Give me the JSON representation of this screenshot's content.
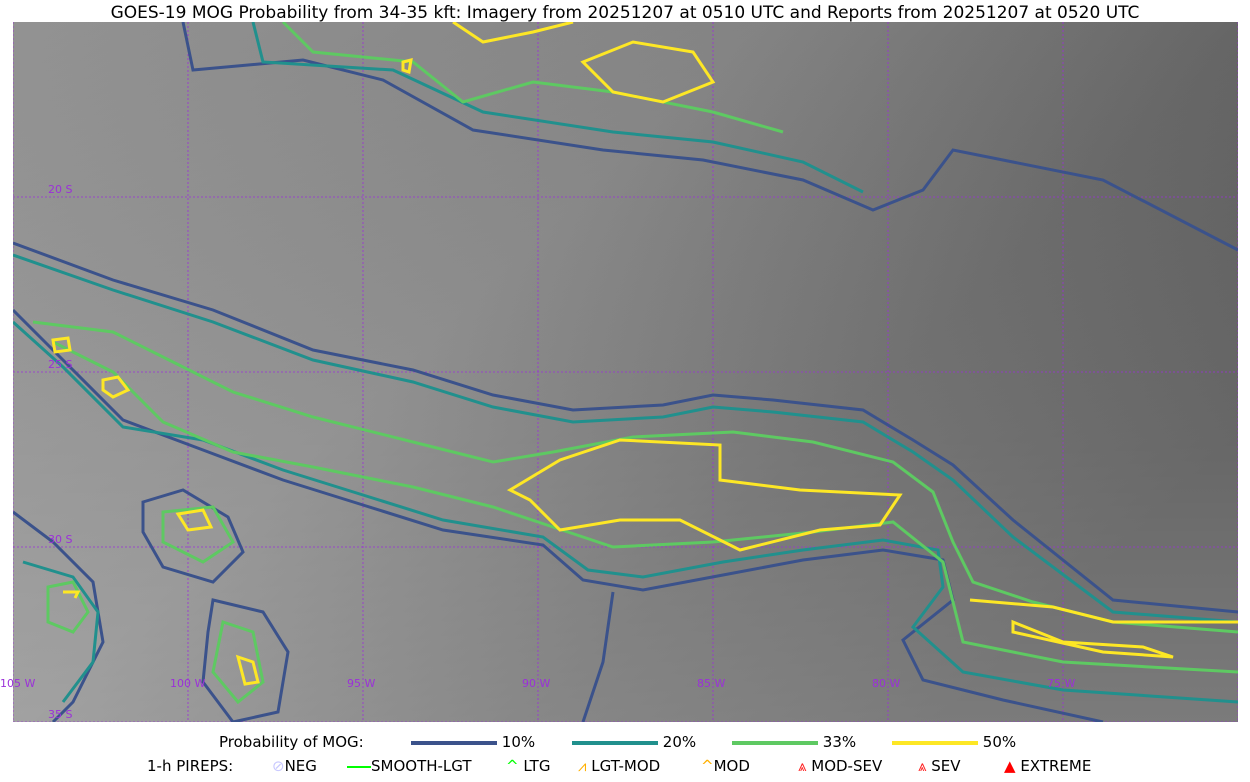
{
  "title": "GOES-19 MOG Probability from 34-35 kft: Imagery from 20251207 at 0510 UTC and Reports from 20251207 at 0520 UTC",
  "map": {
    "lon_labels": [
      "105 W",
      "100 W",
      "95 W",
      "90 W",
      "85 W",
      "80 W",
      "75 W"
    ],
    "lat_labels": [
      "20 S",
      "25 S",
      "30 S",
      "35 S"
    ],
    "gridline_color": "#9b30d9"
  },
  "legend": {
    "prob_label": "Probability of MOG:",
    "levels": [
      {
        "label": "10%",
        "color": "#3b528b"
      },
      {
        "label": "20%",
        "color": "#21908d"
      },
      {
        "label": "33%",
        "color": "#5ec962"
      },
      {
        "label": "50%",
        "color": "#fde725"
      }
    ],
    "pireps_label": "1-h PIREPS:",
    "pireps": [
      {
        "label": "NEG",
        "color": "#c8c8ff",
        "icon": "neg-icon"
      },
      {
        "label": "SMOOTH-LGT",
        "color": "#00ff00",
        "icon": "smooth-lgt-icon"
      },
      {
        "label": "LTG",
        "color": "#00ff00",
        "icon": "ltg-icon"
      },
      {
        "label": "LGT-MOD",
        "color": "#ffb000",
        "icon": "lgt-mod-icon"
      },
      {
        "label": "MOD",
        "color": "#ffb000",
        "icon": "mod-icon"
      },
      {
        "label": "MOD-SEV",
        "color": "#ff2020",
        "icon": "mod-sev-icon"
      },
      {
        "label": "SEV",
        "color": "#ff2020",
        "icon": "sev-icon"
      },
      {
        "label": "EXTREME",
        "color": "#ff0000",
        "icon": "extreme-icon"
      }
    ]
  }
}
